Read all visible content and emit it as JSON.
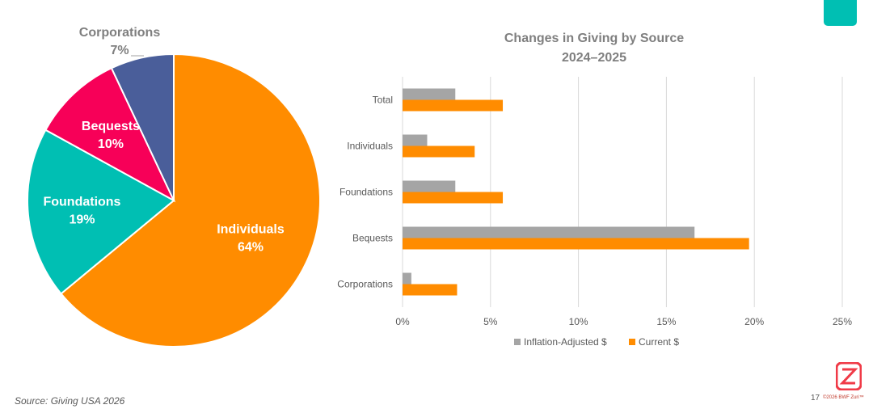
{
  "colors": {
    "accent_teal": "#00BFB3",
    "individuals": "#FF8C00",
    "foundations": "#00BFB3",
    "bequests": "#F70058",
    "corporations": "#4A5E9A",
    "inflation_adjusted": "#A5A5A5",
    "current": "#FF8C00",
    "logo": "#F03A47"
  },
  "chart_data": [
    {
      "type": "pie",
      "title": "",
      "slices": [
        {
          "label": "Individuals",
          "value": 64,
          "display": "64%",
          "color": "#FF8C00"
        },
        {
          "label": "Foundations",
          "value": 19,
          "display": "19%",
          "color": "#00BFB3"
        },
        {
          "label": "Bequests",
          "value": 10,
          "display": "10%",
          "color": "#F70058"
        },
        {
          "label": "Corporations",
          "value": 7,
          "display": "7%",
          "color": "#4A5E9A"
        }
      ]
    },
    {
      "type": "bar",
      "orientation": "horizontal",
      "title": "Changes in Giving by Source",
      "subtitle": "2024–2025",
      "categories": [
        "Total",
        "Individuals",
        "Foundations",
        "Bequests",
        "Corporations"
      ],
      "series": [
        {
          "name": "Inflation-Adjusted $",
          "color": "#A5A5A5",
          "values": [
            3.0,
            1.4,
            3.0,
            16.6,
            0.5
          ]
        },
        {
          "name": "Current $",
          "color": "#FF8C00",
          "values": [
            5.7,
            4.1,
            5.7,
            19.7,
            3.1
          ]
        }
      ],
      "xlim": [
        0,
        25
      ],
      "xticks": [
        "0%",
        "5%",
        "10%",
        "15%",
        "20%",
        "25%"
      ],
      "grid": true,
      "legend_position": "bottom"
    }
  ],
  "footer": {
    "source": "Source: Giving USA 2026",
    "page_number": "17",
    "copyright": "©2026 BWF Zuri™"
  }
}
